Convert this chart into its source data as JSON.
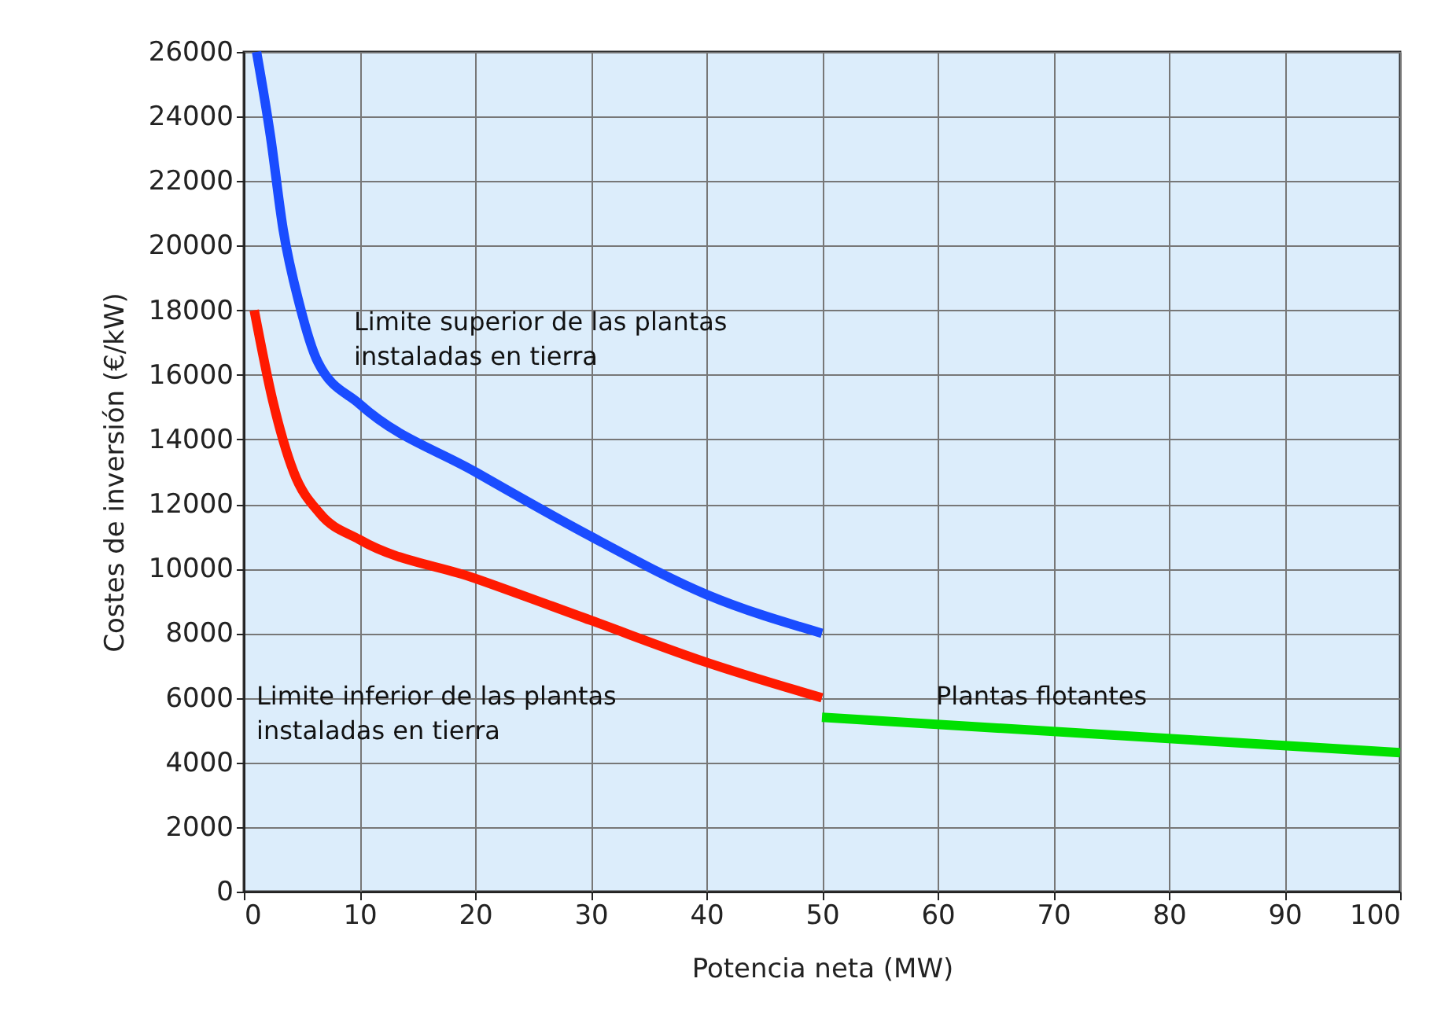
{
  "chart_data": {
    "type": "line",
    "xlabel": "Potencia neta (MW)",
    "ylabel": "Costes de inversión (€/kW)",
    "xlim": [
      0,
      100
    ],
    "xticks": [
      0,
      10,
      20,
      30,
      40,
      50,
      60,
      70,
      80,
      90,
      100
    ],
    "ylim": [
      0,
      26000
    ],
    "yticks": [
      0,
      2000,
      4000,
      6000,
      8000,
      10000,
      12000,
      14000,
      16000,
      18000,
      20000,
      22000,
      24000,
      26000
    ],
    "grid": true,
    "marker": "none",
    "line_style": "solid",
    "series": [
      {
        "color": "#1a4cff",
        "x": [
          1.1,
          2.3,
          3.4,
          4.8,
          6.4,
          10,
          20,
          30,
          40,
          50
        ],
        "values": [
          26000,
          23400,
          20500,
          18200,
          16400,
          15100,
          13000,
          11000,
          9200,
          8000
        ]
      },
      {
        "color": "#ff1a00",
        "x": [
          0.9,
          2.5,
          4.3,
          6.6,
          10,
          20,
          30,
          40,
          50
        ],
        "values": [
          18000,
          15200,
          13000,
          11700,
          10900,
          9700,
          8400,
          7100,
          6000
        ]
      },
      {
        "color": "#00e000",
        "x": [
          50,
          100
        ],
        "values": [
          5400,
          4300
        ]
      }
    ],
    "annotations": [
      "Limite superior de las plantas\ninstaladas en tierra",
      "Limite inferior de las plantas\ninstaladas en tierra",
      "Plantas flotantes"
    ]
  }
}
